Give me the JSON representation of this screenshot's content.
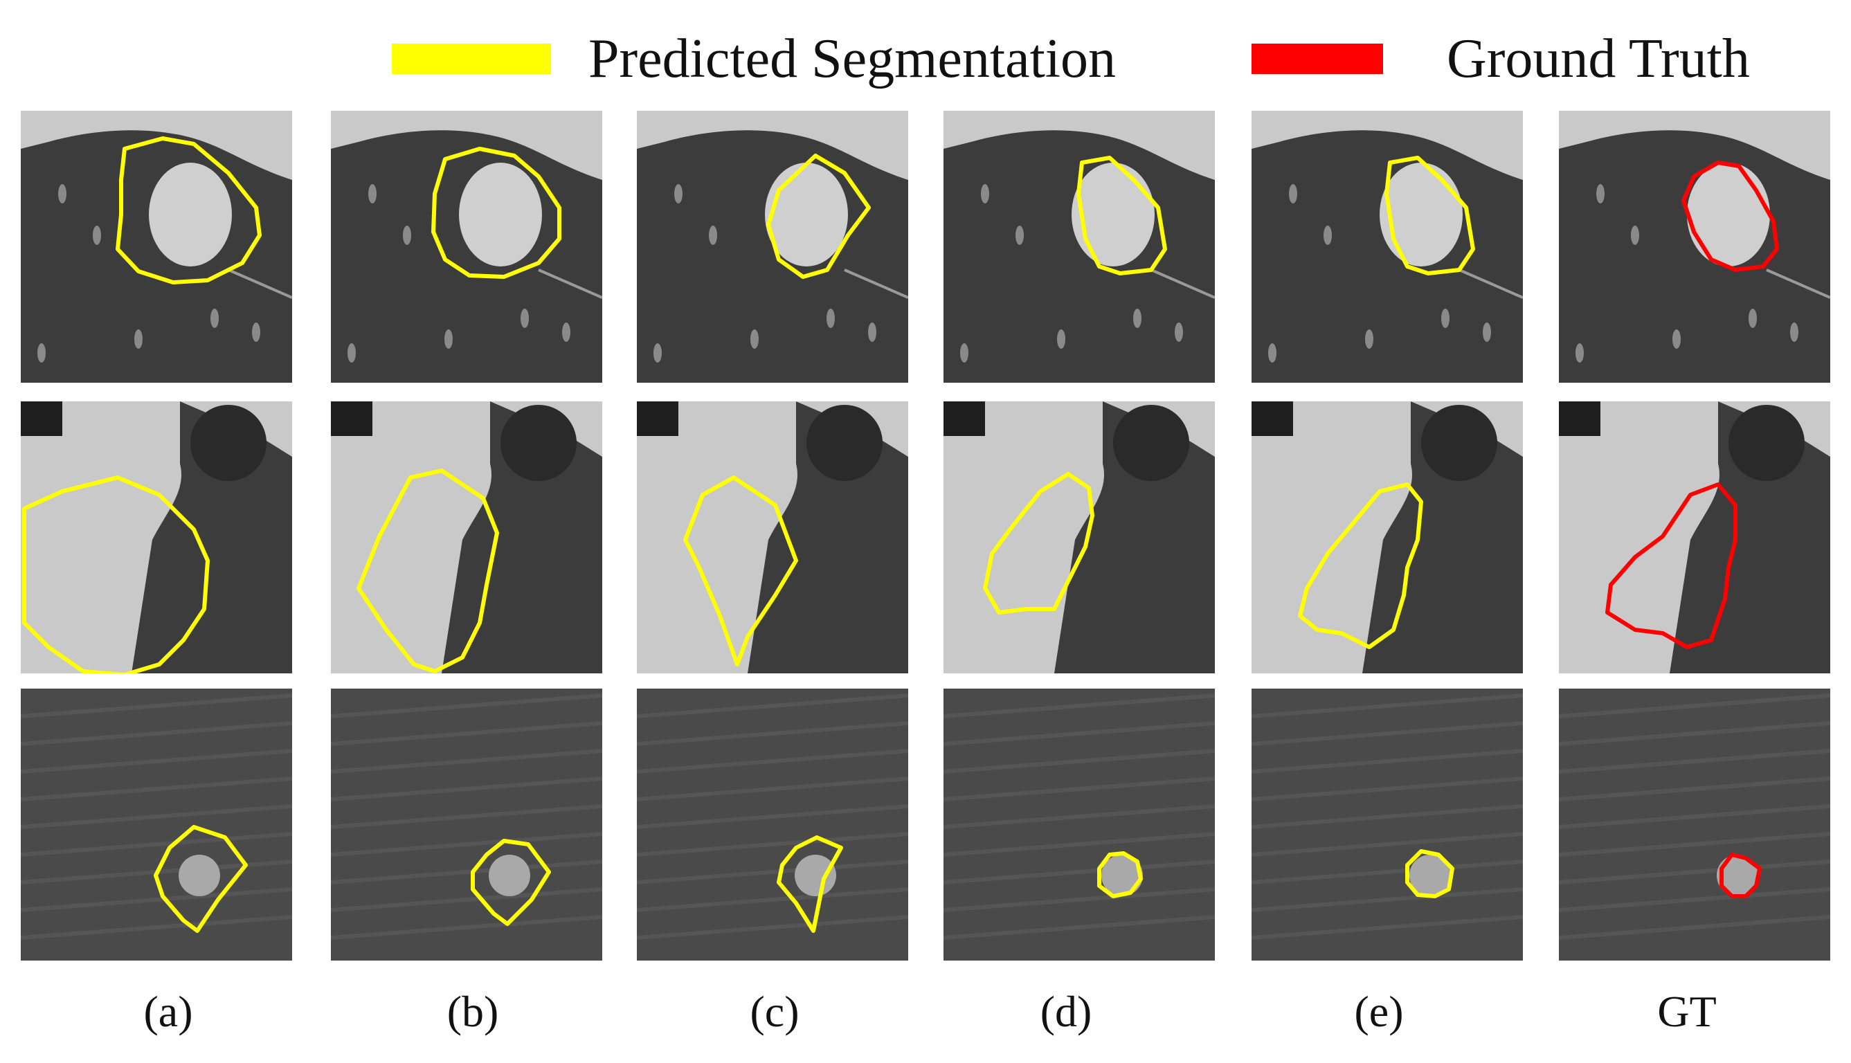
{
  "legend": {
    "predicted": {
      "label": "Predicted Segmentation",
      "color": "#ffff00"
    },
    "ground_truth": {
      "label": "Ground Truth",
      "color": "#ff0000"
    }
  },
  "columns": [
    {
      "caption": "(a)",
      "contour_color": "#ffff00"
    },
    {
      "caption": "(b)",
      "contour_color": "#ffff00"
    },
    {
      "caption": "(c)",
      "contour_color": "#ffff00"
    },
    {
      "caption": "(d)",
      "contour_color": "#ffff00"
    },
    {
      "caption": "(e)",
      "contour_color": "#ffff00"
    },
    {
      "caption": "GT",
      "contour_color": "#ff0000"
    }
  ],
  "colors": {
    "lung": "#3c3c3c",
    "tissue": "#c9c9c9",
    "nodule": "#cfcfcf",
    "bright": "#e6e6e6"
  }
}
